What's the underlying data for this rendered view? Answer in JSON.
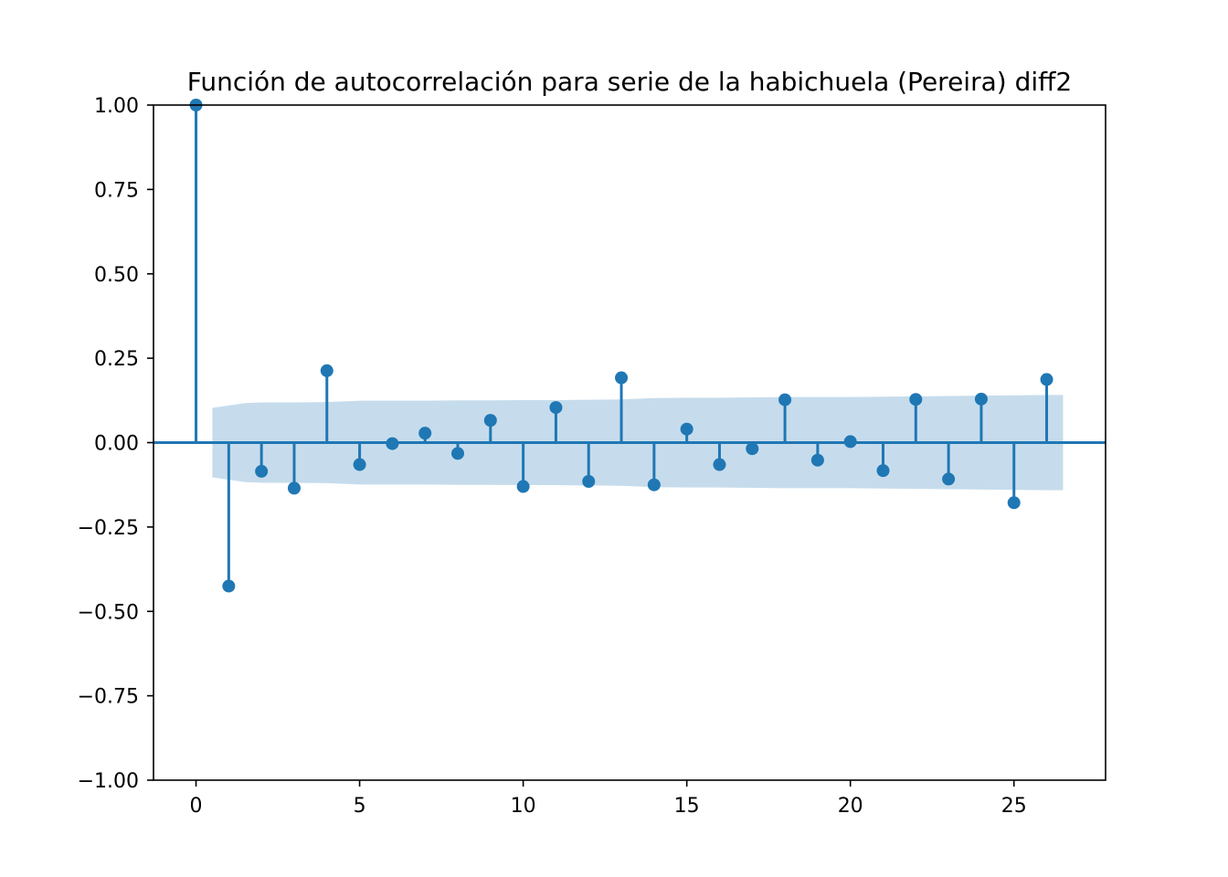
{
  "chart_data": {
    "type": "stem",
    "title": "Función de autocorrelación para serie de la habichuela (Pereira) diff2",
    "xlabel": "",
    "ylabel": "",
    "xlim": [
      -1.3,
      27.8
    ],
    "ylim": [
      -1.0,
      1.0
    ],
    "x_ticks": [
      0,
      5,
      10,
      15,
      20,
      25
    ],
    "x_tick_labels": [
      "0",
      "5",
      "10",
      "15",
      "20",
      "25"
    ],
    "y_ticks": [
      1.0,
      0.75,
      0.5,
      0.25,
      0.0,
      -0.25,
      -0.5,
      -0.75,
      -1.0
    ],
    "y_tick_labels": [
      "1.00",
      "0.75",
      "0.50",
      "0.25",
      "0.00",
      "−0.25",
      "−0.50",
      "−0.75",
      "−1.00"
    ],
    "grid": false,
    "series": [
      {
        "lags": [
          0,
          1,
          2,
          3,
          4,
          5,
          6,
          7,
          8,
          9,
          10,
          11,
          12,
          13,
          14,
          15,
          16,
          17,
          18,
          19,
          20,
          21,
          22,
          23,
          24,
          25,
          26
        ],
        "values": [
          1.0,
          -0.425,
          -0.085,
          -0.135,
          0.213,
          -0.065,
          -0.003,
          0.028,
          -0.032,
          0.066,
          -0.13,
          0.104,
          -0.115,
          0.192,
          -0.125,
          0.04,
          -0.065,
          -0.018,
          0.127,
          -0.052,
          0.003,
          -0.083,
          0.128,
          -0.108,
          0.129,
          -0.178,
          0.187
        ]
      }
    ],
    "confidence_band": {
      "lags": [
        0.5,
        1.5,
        2,
        3,
        4,
        5,
        6,
        7,
        8,
        9,
        10,
        11,
        12,
        13,
        14,
        15,
        16,
        17,
        18,
        19,
        20,
        21,
        22,
        23,
        24,
        25,
        26,
        26.5
      ],
      "upper": [
        0.103,
        0.117,
        0.119,
        0.119,
        0.12,
        0.124,
        0.124,
        0.124,
        0.125,
        0.125,
        0.126,
        0.126,
        0.127,
        0.128,
        0.132,
        0.133,
        0.133,
        0.134,
        0.135,
        0.135,
        0.135,
        0.136,
        0.137,
        0.138,
        0.139,
        0.14,
        0.141,
        0.141
      ],
      "lower": [
        -0.103,
        -0.117,
        -0.119,
        -0.119,
        -0.12,
        -0.124,
        -0.124,
        -0.124,
        -0.125,
        -0.125,
        -0.126,
        -0.126,
        -0.127,
        -0.128,
        -0.132,
        -0.133,
        -0.133,
        -0.134,
        -0.135,
        -0.135,
        -0.135,
        -0.136,
        -0.137,
        -0.138,
        -0.139,
        -0.14,
        -0.141,
        -0.141
      ]
    },
    "colors": {
      "stem": "#1f77b4",
      "band": "#c6dcec",
      "axis": "#000000"
    }
  }
}
